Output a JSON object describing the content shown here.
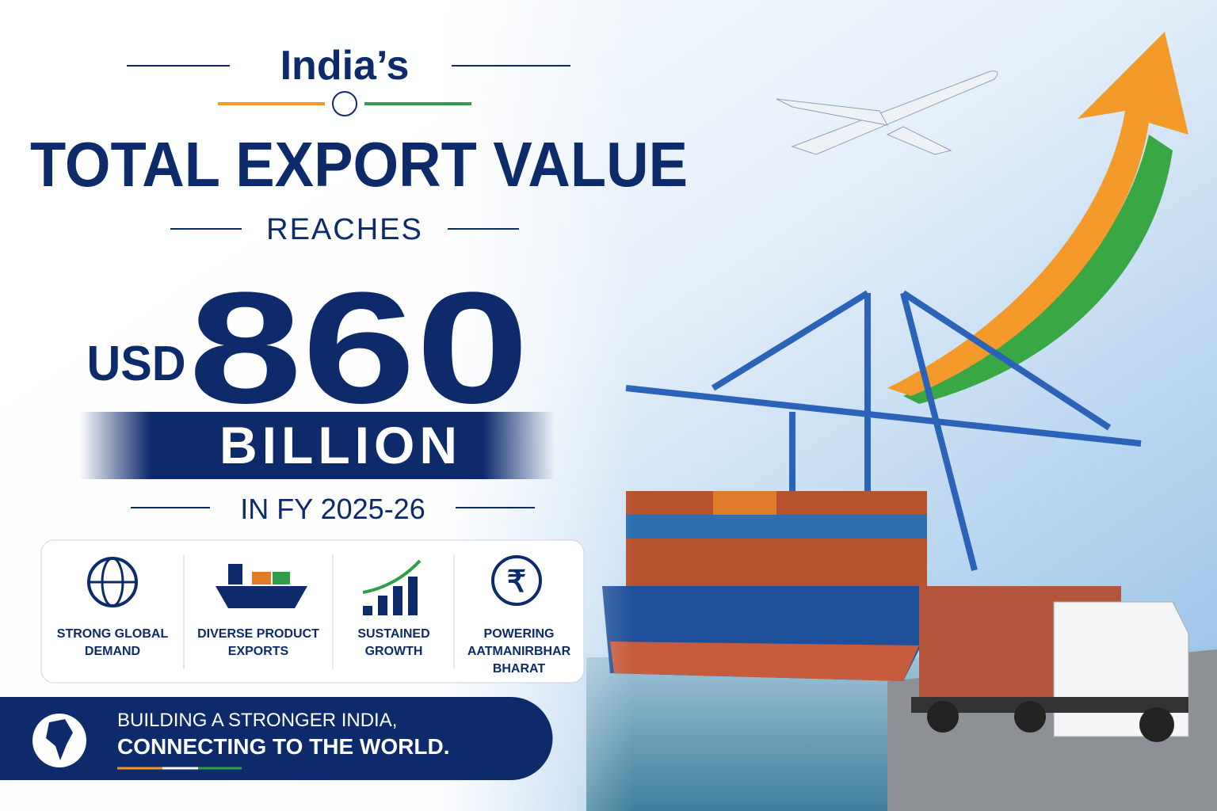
{
  "header": {
    "kicker": "India’s",
    "title": "TOTAL EXPORT VALUE",
    "connector": "REACHES"
  },
  "figure": {
    "currency": "USD",
    "amount": "860",
    "unit": "BILLION",
    "period": "IN FY 2025-26"
  },
  "features": [
    {
      "label": "STRONG GLOBAL DEMAND"
    },
    {
      "label": "DIVERSE PRODUCT EXPORTS"
    },
    {
      "label": "SUSTAINED GROWTH"
    },
    {
      "label": "POWERING AATMANIRBHAR BHARAT"
    }
  ],
  "footer": {
    "line1": "BUILDING A STRONGER INDIA,",
    "line2": "CONNECTING TO THE WORLD."
  }
}
